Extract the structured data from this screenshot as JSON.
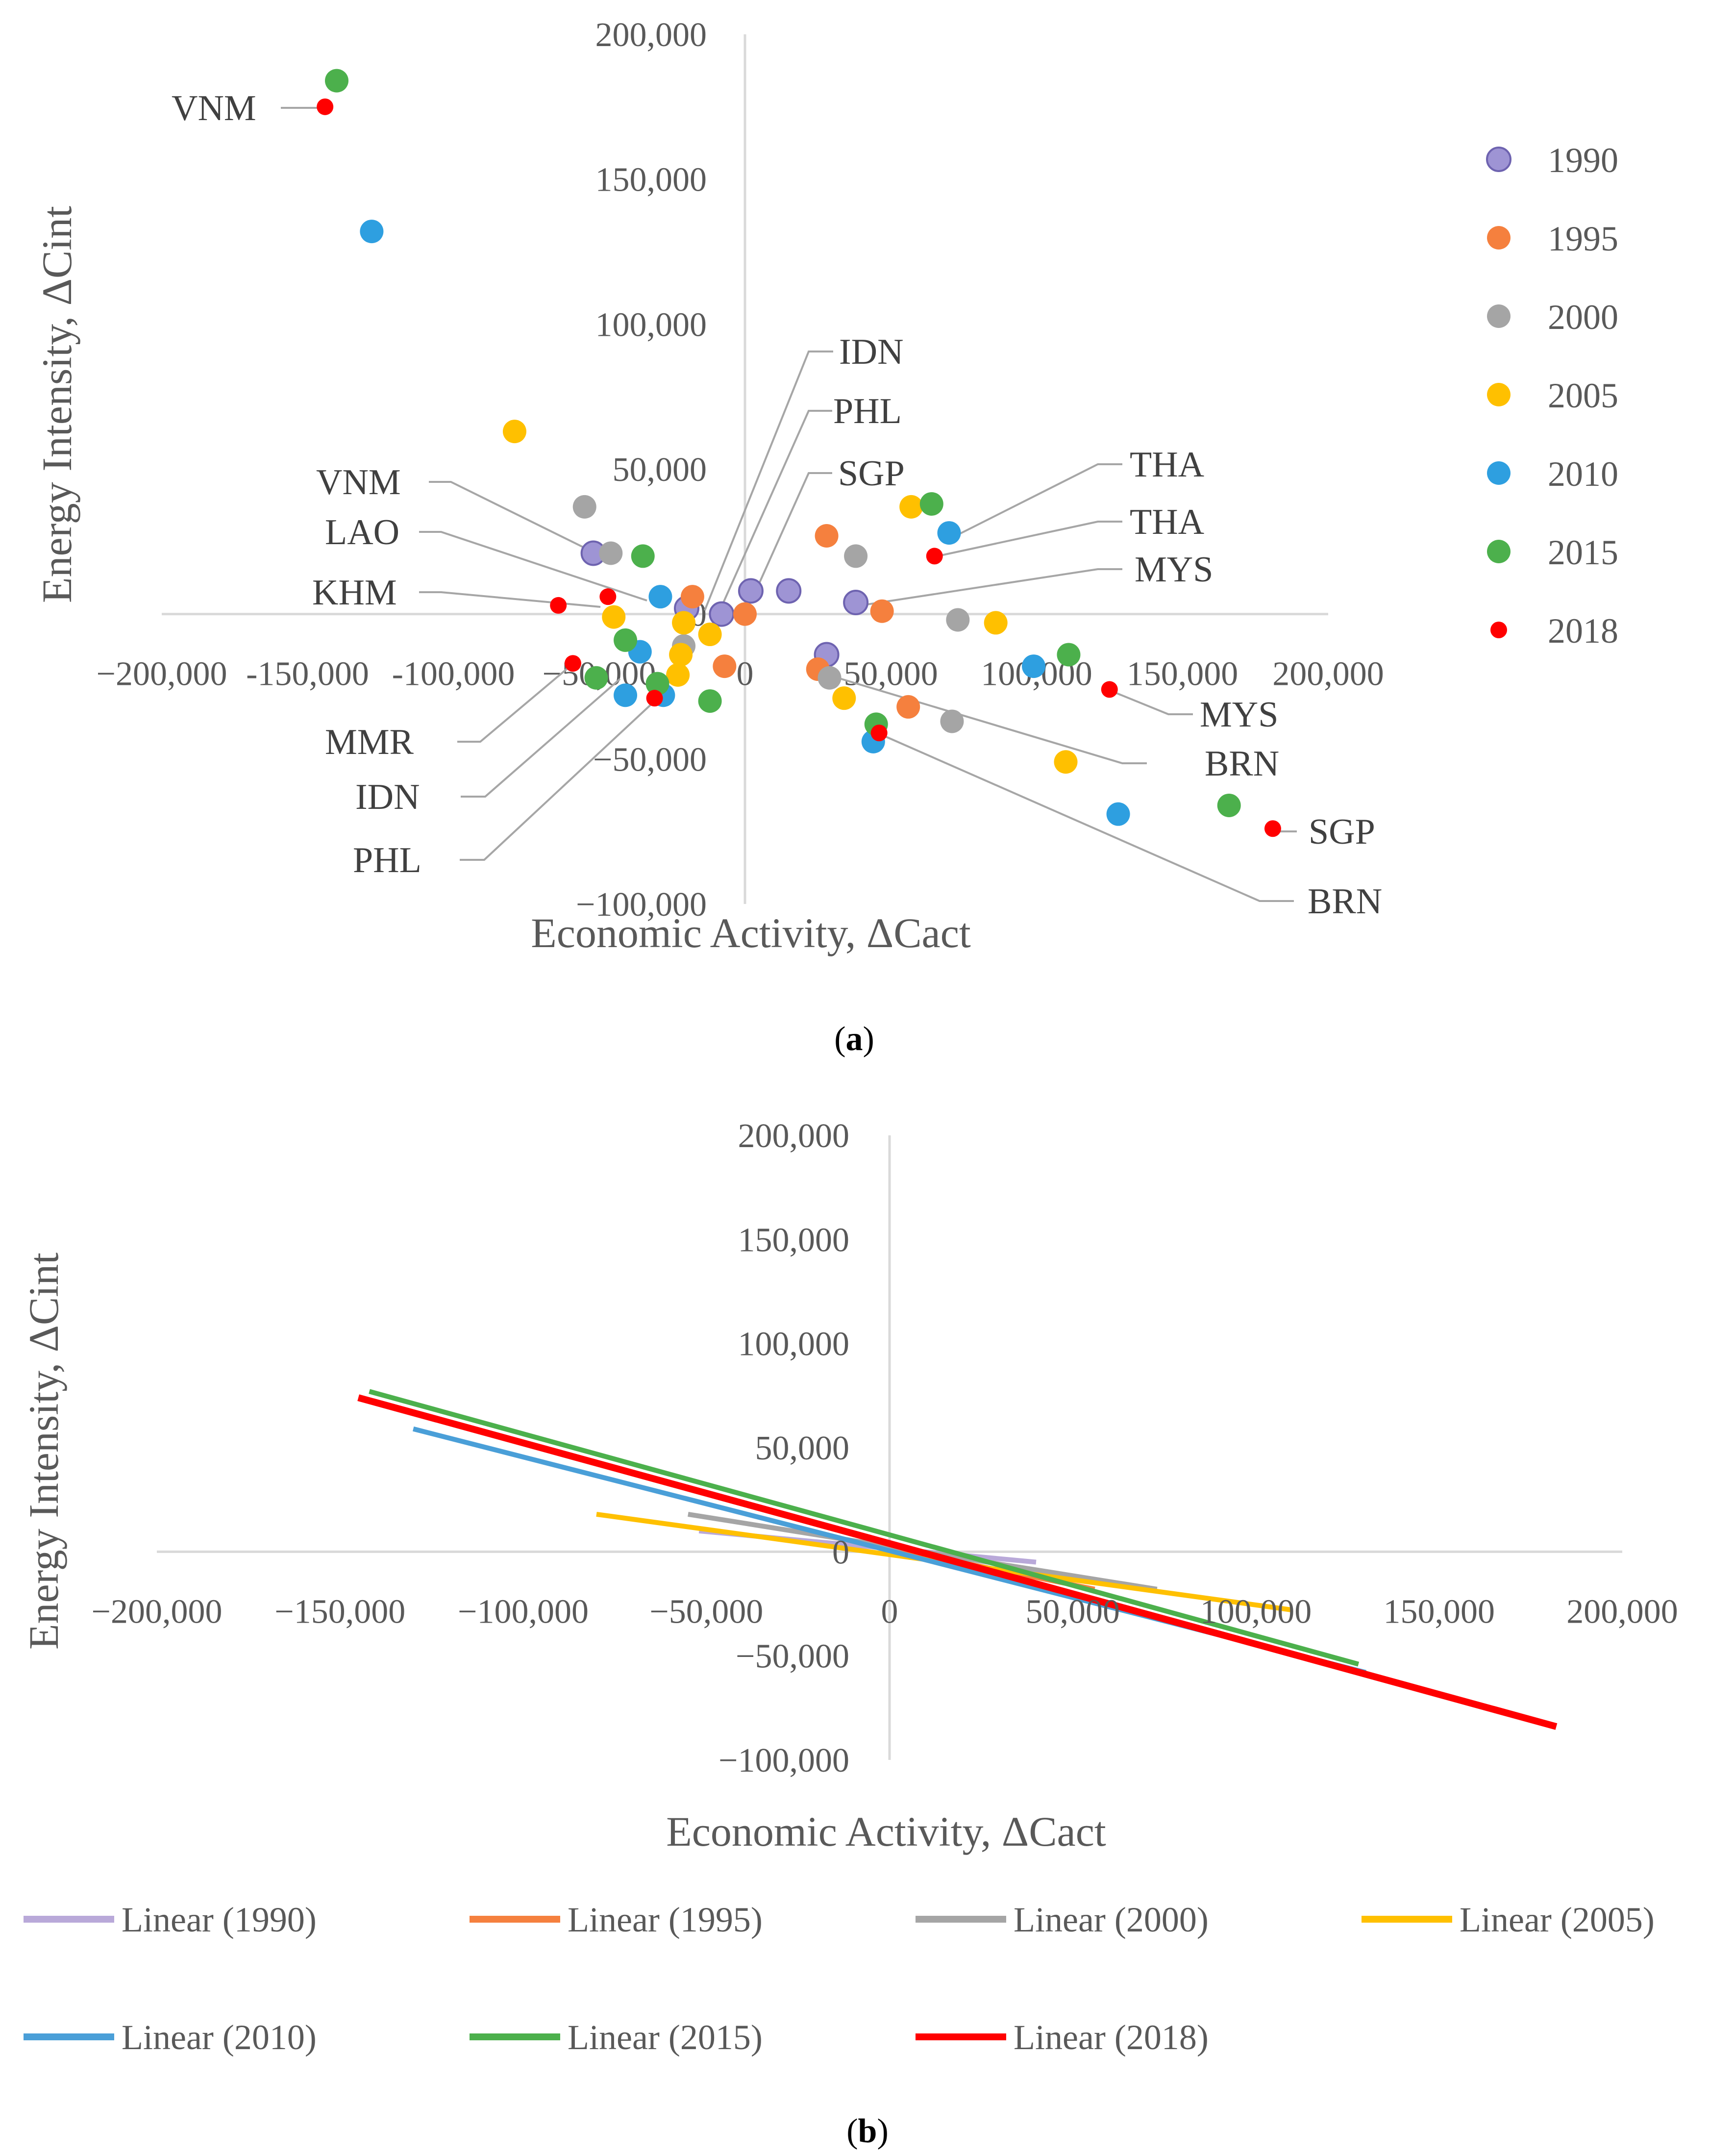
{
  "chart_data": [
    {
      "type": "scatter",
      "panel_label": "a",
      "xlabel": "Economic Activity, ΔCact",
      "ylabel": "Energy Intensity, ΔCint",
      "xlim": [
        -200000,
        200000
      ],
      "ylim": [
        -100000,
        200000
      ],
      "x_ticks": [
        "−200,000",
        "-150,000",
        "-100,000",
        "−50,000",
        "0",
        "50,000",
        "100,000",
        "150,000",
        "200,000"
      ],
      "x_tick_values": [
        -200000,
        -150000,
        -100000,
        -50000,
        0,
        50000,
        100000,
        150000,
        200000
      ],
      "y_ticks": [
        "200,000",
        "150,000",
        "100,000",
        "50,000",
        "0",
        "−50,000",
        "−100,000"
      ],
      "y_tick_values": [
        200000,
        150000,
        100000,
        50000,
        0,
        -50000,
        -100000
      ],
      "legend": [
        "1990",
        "1995",
        "2000",
        "2005",
        "2010",
        "2015",
        "2018"
      ],
      "colors": {
        "1990": "#9e94d4",
        "1995": "#f5803e",
        "2000": "#a5a5a5",
        "2005": "#ffc000",
        "2010": "#2e9fe0",
        "2015": "#4cb04c",
        "2018": "#ff0000"
      },
      "series": [
        {
          "name": "1990",
          "points": [
            [
              -52000,
              21000
            ],
            [
              -8000,
              0
            ],
            [
              2000,
              8000
            ],
            [
              15000,
              8000
            ],
            [
              -20000,
              2000
            ],
            [
              28000,
              -14000
            ],
            [
              38000,
              4000
            ]
          ]
        },
        {
          "name": "1995",
          "points": [
            [
              -18000,
              6000
            ],
            [
              0,
              0
            ],
            [
              28000,
              27000
            ],
            [
              47000,
              1000
            ],
            [
              25000,
              -19000
            ],
            [
              -7000,
              -18000
            ],
            [
              56000,
              -32000
            ]
          ]
        },
        {
          "name": "2000",
          "points": [
            [
              -55000,
              37000
            ],
            [
              -46000,
              21000
            ],
            [
              -21000,
              -11000
            ],
            [
              38000,
              20000
            ],
            [
              73000,
              -2000
            ],
            [
              29000,
              -22000
            ],
            [
              71000,
              -37000
            ]
          ]
        },
        {
          "name": "2005",
          "points": [
            [
              -79000,
              63000
            ],
            [
              -45000,
              -1000
            ],
            [
              -21000,
              -3000
            ],
            [
              -12000,
              -7000
            ],
            [
              -22000,
              -14000
            ],
            [
              -23000,
              -21000
            ],
            [
              34000,
              -29000
            ],
            [
              57000,
              37000
            ],
            [
              86000,
              -3000
            ],
            [
              110000,
              -51000
            ]
          ]
        },
        {
          "name": "2010",
          "points": [
            [
              -128000,
              132000
            ],
            [
              -29000,
              6000
            ],
            [
              -36000,
              -13000
            ],
            [
              -41000,
              -28000
            ],
            [
              -28000,
              -28000
            ],
            [
              70000,
              28000
            ],
            [
              99000,
              -18000
            ],
            [
              44000,
              -44000
            ],
            [
              128000,
              -69000
            ]
          ]
        },
        {
          "name": "2015",
          "points": [
            [
              -140000,
              184000
            ],
            [
              -35000,
              20000
            ],
            [
              -41000,
              -9000
            ],
            [
              -51000,
              -22000
            ],
            [
              -30000,
              -24000
            ],
            [
              -12000,
              -30000
            ],
            [
              64000,
              38000
            ],
            [
              111000,
              -14000
            ],
            [
              45000,
              -38000
            ],
            [
              166000,
              -66000
            ]
          ]
        },
        {
          "name": "2018",
          "points": [
            [
              -144000,
              175000
            ],
            [
              -64000,
              3000
            ],
            [
              -47000,
              6000
            ],
            [
              -59000,
              -17000
            ],
            [
              -31000,
              -29000
            ],
            [
              65000,
              20000
            ],
            [
              125000,
              -26000
            ],
            [
              181000,
              -74000
            ],
            [
              46000,
              -41000
            ]
          ]
        }
      ],
      "country_labels": [
        "VNM",
        "IDN",
        "PHL",
        "SGP",
        "THA",
        "THA",
        "VNM",
        "LAO",
        "MYS",
        "KHM",
        "MYS",
        "MMR",
        "BRN",
        "IDN",
        "SGP",
        "PHL",
        "BRN"
      ]
    },
    {
      "type": "line",
      "panel_label": "b",
      "xlabel": "Economic Activity, ΔCact",
      "ylabel": "Energy Intensity, ΔCint",
      "xlim": [
        -200000,
        200000
      ],
      "ylim": [
        -100000,
        200000
      ],
      "x_ticks": [
        "−200,000",
        "−150,000",
        "−100,000",
        "−50,000",
        "0",
        "50,000",
        "100,000",
        "150,000",
        "200,000"
      ],
      "x_tick_values": [
        -200000,
        -150000,
        -100000,
        -50000,
        0,
        50000,
        100000,
        150000,
        200000
      ],
      "y_ticks": [
        "200,000",
        "150,000",
        "100,000",
        "50,000",
        "0",
        "−50,000",
        "−100,000"
      ],
      "y_tick_values": [
        200000,
        150000,
        100000,
        50000,
        0,
        -50000,
        -100000
      ],
      "legend": [
        "Linear (1990)",
        "Linear (1995)",
        "Linear (2000)",
        "Linear (2005)",
        "Linear (2010)",
        "Linear (2015)",
        "Linear (2018)"
      ],
      "colors": {
        "Linear (1990)": "#b9a9d9",
        "Linear (1995)": "#f5803e",
        "Linear (2000)": "#a5a5a5",
        "Linear (2005)": "#ffc000",
        "Linear (2010)": "#4a9fd8",
        "Linear (2015)": "#4cb04c",
        "Linear (2018)": "#ff0000"
      },
      "series": [
        {
          "name": "Linear (1990)",
          "x": [
            -52000,
            40000
          ],
          "y": [
            10000,
            -5000
          ]
        },
        {
          "name": "Linear (1995)",
          "x": [
            -18000,
            56000
          ],
          "y": [
            8000,
            -18000
          ]
        },
        {
          "name": "Linear (2000)",
          "x": [
            -55000,
            73000
          ],
          "y": [
            18000,
            -18000
          ]
        },
        {
          "name": "Linear (2005)",
          "x": [
            -80000,
            110000
          ],
          "y": [
            18000,
            -28000
          ]
        },
        {
          "name": "Linear (2010)",
          "x": [
            -130000,
            130000
          ],
          "y": [
            59000,
            -58000
          ]
        },
        {
          "name": "Linear (2015)",
          "x": [
            -142000,
            128000
          ],
          "y": [
            77000,
            -54000
          ]
        },
        {
          "name": "Linear (2018)",
          "x": [
            -145000,
            182000
          ],
          "y": [
            74000,
            -84000
          ]
        }
      ]
    }
  ]
}
